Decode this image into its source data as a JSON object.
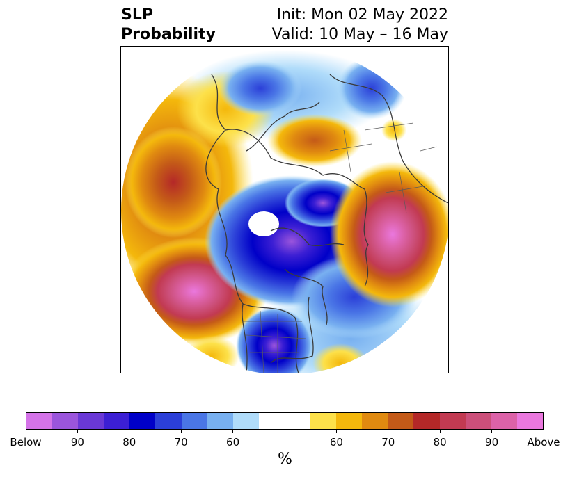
{
  "header": {
    "title_line1": "SLP",
    "title_line2": "Probability",
    "init_text": "Init: Mon 02 May 2022",
    "valid_text": "Valid: 10 May – 16 May"
  },
  "colorbar": {
    "unit_label": "%",
    "below_colors": [
      "#d473e8",
      "#9b55dc",
      "#6a38d6",
      "#3c1fd4",
      "#0000c8",
      "#2b3fd8",
      "#4a76e6",
      "#78b0f0",
      "#b0dcfa"
    ],
    "neutral_color": "#ffffff",
    "above_colors": [
      "#fde14a",
      "#f4b80c",
      "#e08a10",
      "#c45a18",
      "#b42828",
      "#c23a52",
      "#cc4f7a",
      "#dc62a8",
      "#ea78de"
    ],
    "tick_labels": [
      "Below",
      "90",
      "80",
      "70",
      "60",
      "60",
      "70",
      "80",
      "90",
      "Above"
    ]
  },
  "map": {
    "projection": "north-polar-stereographic",
    "variable": "sea-level-pressure-probability"
  }
}
